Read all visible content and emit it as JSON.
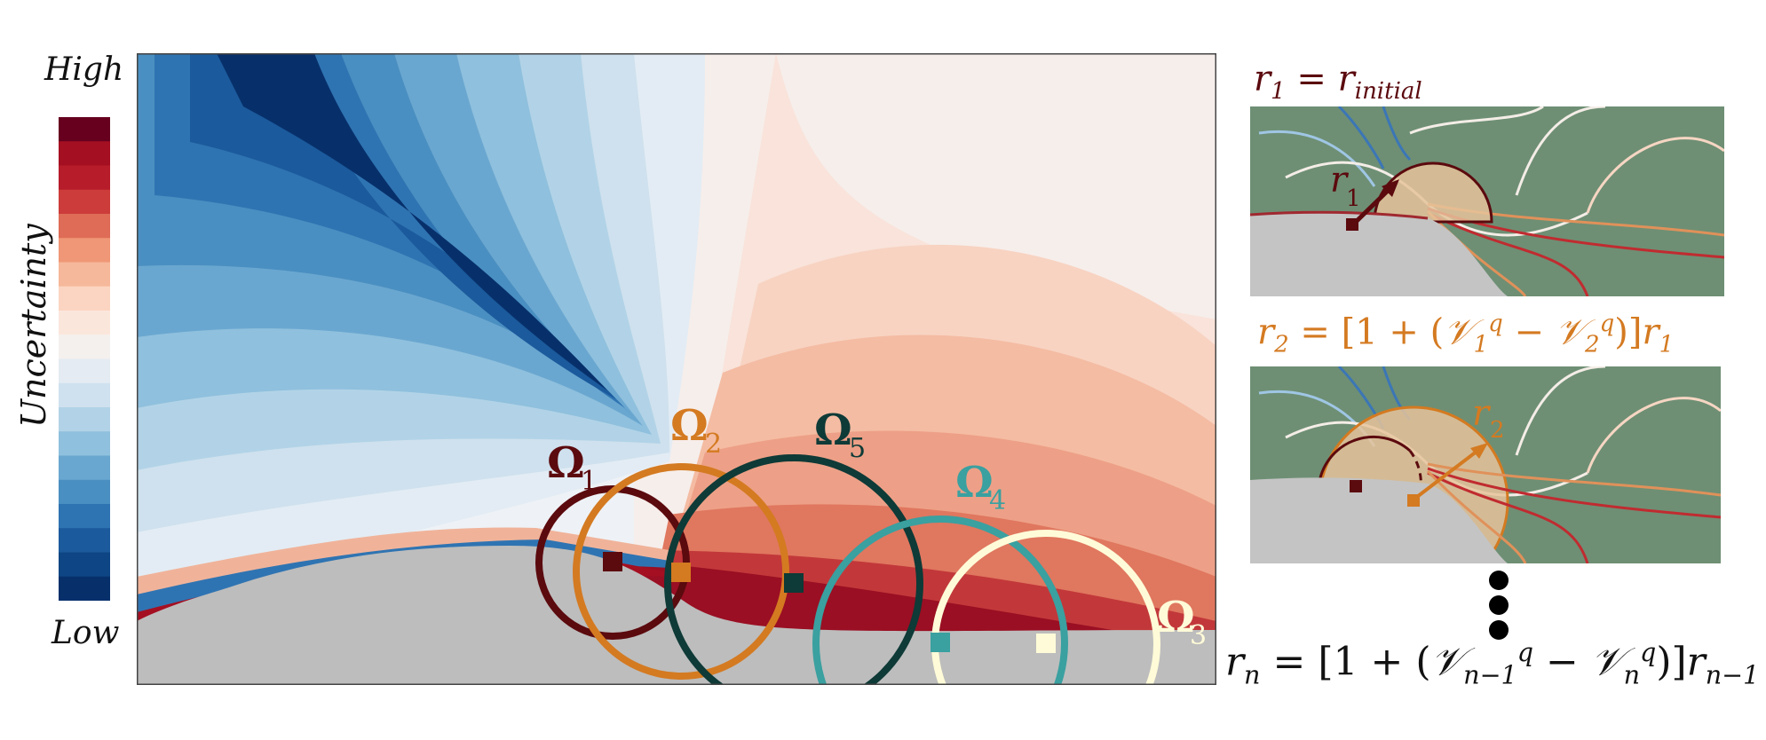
{
  "colorbar": {
    "high_label": "High",
    "low_label": "Low",
    "title": "Uncertainty",
    "colors": [
      "#67001f",
      "#a50f22",
      "#b71c2b",
      "#cc3c3a",
      "#de6c57",
      "#ef9776",
      "#f6b89b",
      "#fbd5c1",
      "#fbe6dc",
      "#f4f0ee",
      "#e4ebf2",
      "#cfe1ee",
      "#b2d3e7",
      "#8fc0dd",
      "#6aa7d0",
      "#4a8fc1",
      "#2f74b2",
      "#1b5a9c",
      "#0e4584",
      "#07306b"
    ]
  },
  "main_field": {
    "background_low": "#bdbdbd",
    "regions": [
      {
        "label_main": "Ω",
        "label_sub": "1",
        "color": "#5b0a0e",
        "center": "square"
      },
      {
        "label_main": "Ω",
        "label_sub": "2",
        "color": "#d47a21",
        "center": "square"
      },
      {
        "label_main": "Ω",
        "label_sub": "5",
        "color": "#0e3a37",
        "center": "square"
      },
      {
        "label_main": "Ω",
        "label_sub": "4",
        "color": "#3aa0a0",
        "center": "square"
      },
      {
        "label_main": "Ω",
        "label_sub": "3",
        "color": "#fffbd8",
        "center": "square"
      }
    ]
  },
  "insets": {
    "background": "#6e8f74",
    "top": {
      "eq": {
        "r": "r",
        "sub1": "1",
        "eq": "=",
        "r2": "r",
        "sub2": "initial"
      },
      "radius_label": "r",
      "radius_sub": "1",
      "color": "#5b0a0e"
    },
    "bottom": {
      "eq": {
        "r": "r",
        "sub": "2",
        "eq": "= [1 + (",
        "V1": "𝒱",
        "V1_sub": "1",
        "V1_sup": "q",
        "minus": "−",
        "V2": "𝒱",
        "V2_sub": "2",
        "V2_sup": "q",
        "close": ")]",
        "r_end": "r",
        "r_end_sub": "1"
      },
      "radius_label": "r",
      "radius_sub": "2",
      "color": "#d47a21"
    }
  },
  "ellipsis_dots": 3,
  "final_eq": {
    "r": "r",
    "sub": "n",
    "eq": "= [1 + (",
    "V1": "𝒱",
    "V1_sub": "n−1",
    "V1_sup": "q",
    "minus": "−",
    "V2": "𝒱",
    "V2_sub": "n",
    "V2_sup": "q",
    "close": ")]",
    "r_end": "r",
    "r_end_sub": "n−1"
  }
}
